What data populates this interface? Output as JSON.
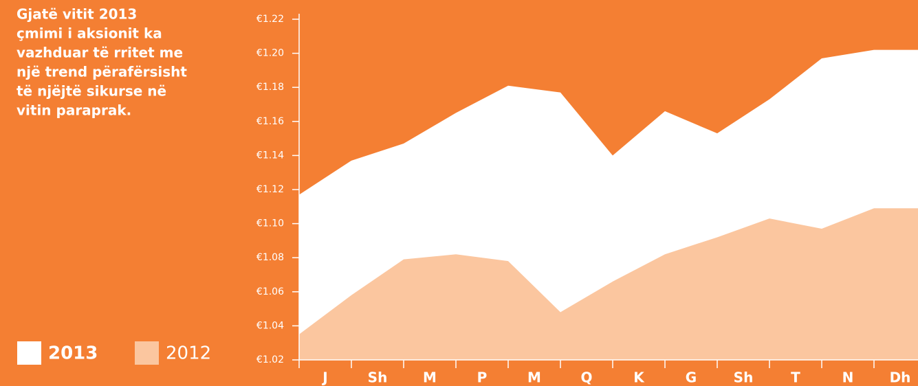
{
  "chart_data": {
    "type": "area",
    "description": [
      "Gjatë vitit 2013",
      "çmimi i aksionit ka",
      "vazhduar të rritet me",
      "një trend përafërsisht",
      "të njëjtë sikurse në",
      "vitin paraprak."
    ],
    "categories": [
      "J",
      "Sh",
      "M",
      "P",
      "M",
      "Q",
      "K",
      "G",
      "Sh",
      "T",
      "N",
      "Dh"
    ],
    "series": [
      {
        "name": "2013",
        "color": "#ffffff",
        "values": [
          1.117,
          1.137,
          1.147,
          1.165,
          1.181,
          1.177,
          1.14,
          1.166,
          1.153,
          1.173,
          1.197,
          1.202
        ]
      },
      {
        "name": "2012",
        "color": "#fbc69f",
        "values": [
          1.035,
          1.058,
          1.079,
          1.082,
          1.078,
          1.048,
          1.066,
          1.082,
          1.092,
          1.103,
          1.097,
          1.109
        ]
      }
    ],
    "ylim": [
      1.02,
      1.22
    ],
    "yticks": [
      {
        "value": 1.02,
        "label": "€1.02"
      },
      {
        "value": 1.04,
        "label": "€1.04"
      },
      {
        "value": 1.06,
        "label": "€1.06"
      },
      {
        "value": 1.08,
        "label": "€1.08"
      },
      {
        "value": 1.1,
        "label": "€1.10"
      },
      {
        "value": 1.12,
        "label": "€1.12"
      },
      {
        "value": 1.14,
        "label": "€1.14"
      },
      {
        "value": 1.16,
        "label": "€1.16"
      },
      {
        "value": 1.18,
        "label": "€1.18"
      },
      {
        "value": 1.2,
        "label": "€1.20"
      },
      {
        "value": 1.22,
        "label": "€1.22"
      }
    ],
    "background": "#f47f33"
  }
}
